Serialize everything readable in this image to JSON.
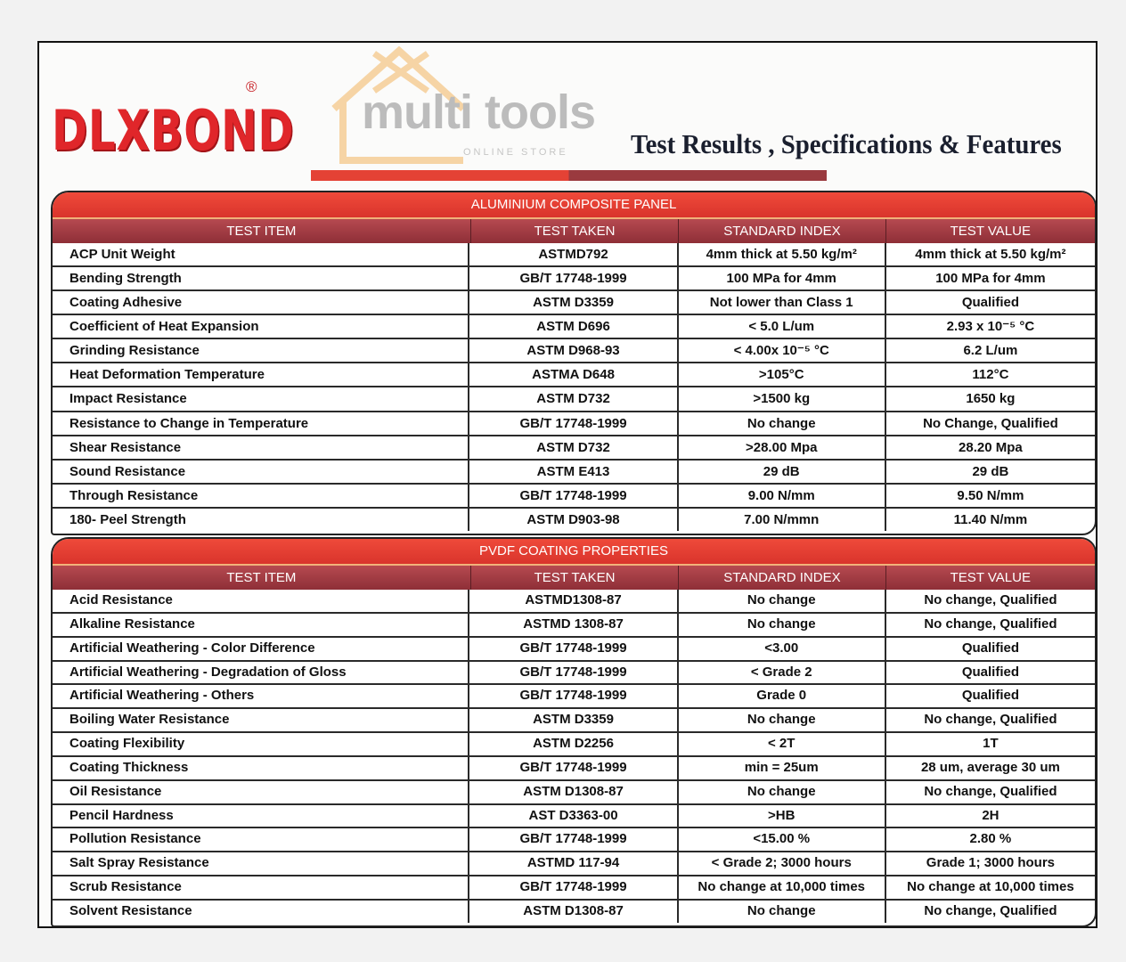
{
  "brand": {
    "logo": "DLXBOND",
    "registered": "®"
  },
  "page_title": "Test Results , Specifications & Features",
  "watermark": {
    "text": "multi tools",
    "subtext": "ONLINE STORE"
  },
  "colors": {
    "brand_red": "#e0262a",
    "header_maroon": "#8e2f37",
    "title_red": "#e44235"
  },
  "tables": [
    {
      "title": "ALUMINIUM COMPOSITE PANEL",
      "headers": [
        "TEST ITEM",
        "TEST TAKEN",
        "STANDARD INDEX",
        "TEST VALUE"
      ],
      "rows": [
        [
          "ACP Unit Weight",
          "ASTMD792",
          "4mm thick at 5.50 kg/m²",
          "4mm thick at 5.50 kg/m²"
        ],
        [
          "Bending Strength",
          "GB/T 17748-1999",
          "100 MPa for 4mm",
          "100 MPa for 4mm"
        ],
        [
          "Coating Adhesive",
          "ASTM D3359",
          "Not lower than Class 1",
          "Qualified"
        ],
        [
          "Coefficient of Heat Expansion",
          "ASTM D696",
          "< 5.0 L/um",
          "2.93 x 10⁻⁵ °C"
        ],
        [
          "Grinding Resistance",
          "ASTM D968-93",
          "< 4.00x 10⁻⁵ °C",
          "6.2 L/um"
        ],
        [
          "Heat Deformation Temperature",
          "ASTMA D648",
          ">105°C",
          "112°C"
        ],
        [
          "Impact Resistance",
          "ASTM D732",
          ">1500 kg",
          "1650 kg"
        ],
        [
          "Resistance to Change in Temperature",
          "GB/T 17748-1999",
          "No change",
          "No Change, Qualified"
        ],
        [
          "Shear Resistance",
          "ASTM D732",
          ">28.00 Mpa",
          "28.20 Mpa"
        ],
        [
          "Sound Resistance",
          "ASTM E413",
          "29 dB",
          "29 dB"
        ],
        [
          "Through Resistance",
          "GB/T 17748-1999",
          "9.00 N/mm",
          "9.50 N/mm"
        ],
        [
          "180- Peel Strength",
          "ASTM D903-98",
          "7.00 N/mmn",
          "11.40 N/mm"
        ]
      ]
    },
    {
      "title": "PVDF COATING PROPERTIES",
      "headers": [
        "TEST ITEM",
        "TEST TAKEN",
        "STANDARD INDEX",
        "TEST VALUE"
      ],
      "rows": [
        [
          "Acid Resistance",
          "ASTMD1308-87",
          "No change",
          "No change, Qualified"
        ],
        [
          "Alkaline Resistance",
          "ASTMD 1308-87",
          "No change",
          "No change, Qualified"
        ],
        [
          "Artificial Weathering - Color Difference",
          "GB/T 17748-1999",
          "<3.00",
          "Qualified"
        ],
        [
          "Artificial Weathering - Degradation of Gloss",
          "GB/T 17748-1999",
          "< Grade 2",
          "Qualified"
        ],
        [
          "Artificial Weathering - Others",
          "GB/T 17748-1999",
          "Grade 0",
          "Qualified"
        ],
        [
          "Boiling Water Resistance",
          "ASTM D3359",
          "No change",
          "No change, Qualified"
        ],
        [
          "Coating Flexibility",
          "ASTM D2256",
          "< 2T",
          "1T"
        ],
        [
          "Coating Thickness",
          "GB/T 17748-1999",
          "min = 25um",
          "28 um, average 30 um"
        ],
        [
          "Oil Resistance",
          "ASTM D1308-87",
          "No change",
          "No change, Qualified"
        ],
        [
          "Pencil Hardness",
          "AST D3363-00",
          ">HB",
          "2H"
        ],
        [
          "Pollution Resistance",
          "GB/T 17748-1999",
          "<15.00 %",
          "2.80 %"
        ],
        [
          "Salt Spray Resistance",
          "ASTMD 117-94",
          "< Grade 2; 3000 hours",
          "Grade 1; 3000 hours"
        ],
        [
          "Scrub Resistance",
          "GB/T 17748-1999",
          "No change at 10,000 times",
          "No change at 10,000 times"
        ],
        [
          "Solvent Resistance",
          "ASTM D1308-87",
          "No change",
          "No change, Qualified"
        ]
      ]
    }
  ]
}
